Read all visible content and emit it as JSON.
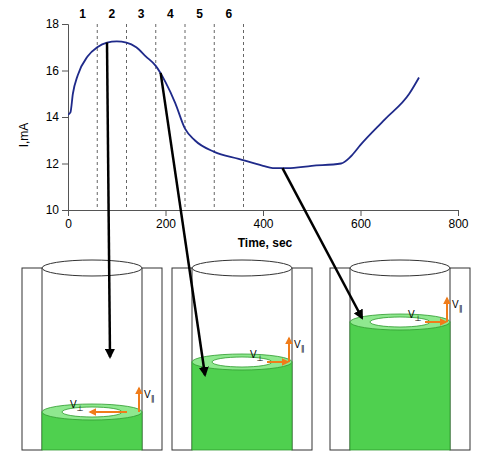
{
  "chart_data": {
    "type": "line",
    "x_label": "Time, sec",
    "y_label": "I,mA",
    "x": [
      0,
      5,
      10,
      20,
      40,
      60,
      80,
      100,
      120,
      140,
      160,
      180,
      200,
      220,
      240,
      260,
      300,
      350,
      400,
      420,
      450,
      500,
      560,
      580,
      600,
      650,
      700,
      720
    ],
    "values": [
      14.1,
      14.2,
      15.0,
      15.8,
      16.6,
      17.0,
      17.2,
      17.25,
      17.2,
      17.0,
      16.6,
      16.2,
      15.5,
      14.6,
      13.5,
      13.0,
      12.5,
      12.2,
      11.9,
      11.8,
      11.8,
      11.9,
      12.0,
      12.3,
      12.8,
      13.9,
      15.0,
      15.7
    ],
    "color": "#1f2a8a",
    "xlim": [
      0,
      800
    ],
    "xticks": [
      0,
      200,
      400,
      600,
      800
    ],
    "ylim": [
      10,
      18
    ],
    "yticks": [
      10,
      12,
      14,
      16,
      18
    ],
    "grid": false,
    "phases": {
      "boundaries": [
        60,
        120,
        180,
        240,
        300,
        360
      ],
      "labels": [
        "1",
        "2",
        "3",
        "4",
        "5",
        "6"
      ]
    },
    "pointers": [
      {
        "x": 80,
        "y": 17.2
      },
      {
        "x": 190,
        "y": 15.9
      },
      {
        "x": 440,
        "y": 11.8
      }
    ]
  },
  "diagrams": [
    {
      "labels": [
        "V⊥",
        "V∥"
      ]
    },
    {
      "labels": [
        "V⊥",
        "V∥"
      ]
    },
    {
      "labels": [
        "V⊥",
        "V∥"
      ]
    }
  ]
}
